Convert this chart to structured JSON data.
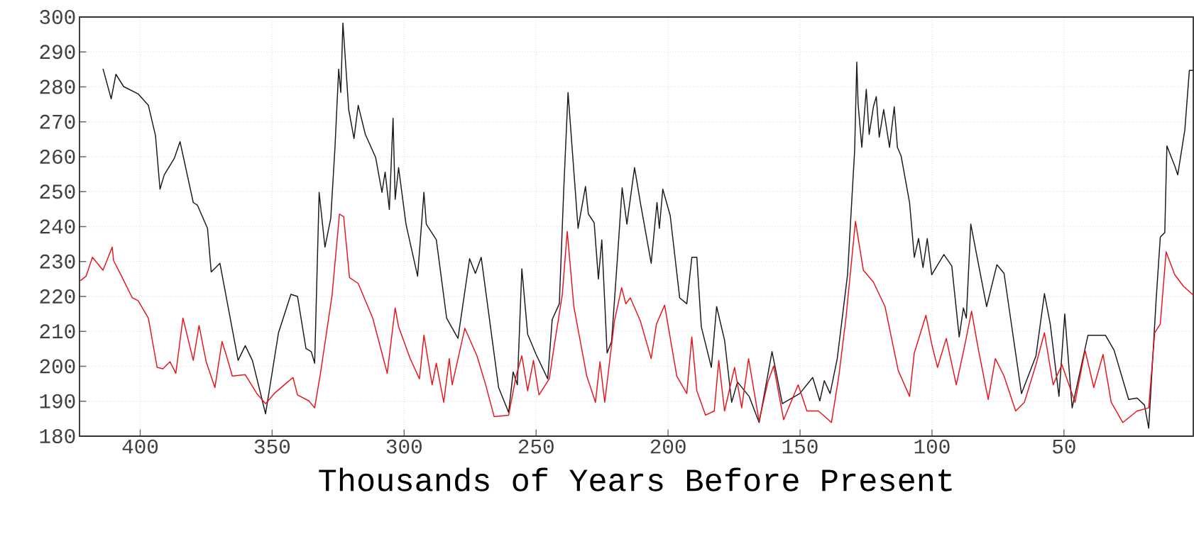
{
  "chart_data": {
    "type": "line",
    "xlabel": "Thousands of Years Before Present",
    "xlim": [
      423,
      1
    ],
    "ylim": [
      180,
      300
    ],
    "xticks": [
      400,
      350,
      300,
      250,
      200,
      150,
      100,
      50
    ],
    "yticks": [
      180,
      190,
      200,
      210,
      220,
      230,
      240,
      250,
      260,
      270,
      280,
      290,
      300
    ],
    "grid": true,
    "line_style": "solid",
    "series": [
      {
        "color": "#1a1a1a",
        "x": [
          414.1,
          411.0,
          409.2,
          406.3,
          400.8,
          396.9,
          394.2,
          392.5,
          390.9,
          387.1,
          384.9,
          379.9,
          378.3,
          374.5,
          373.1,
          369.8,
          362.9,
          360.2,
          357.5,
          352.5,
          347.6,
          342.9,
          340.4,
          337.2,
          335.2,
          333.9,
          332.2,
          330.0,
          327.8,
          326.2,
          324.8,
          324.0,
          323.2,
          321.0,
          319.0,
          317.4,
          314.7,
          310.8,
          308.4,
          307.2,
          305.6,
          304.2,
          303.4,
          302.1,
          299.3,
          294.9,
          292.5,
          291.6,
          287.8,
          283.9,
          279.6,
          275.2,
          273.0,
          270.8,
          264.2,
          260.4,
          258.7,
          257.1,
          255.4,
          253.2,
          250.0,
          245.6,
          243.9,
          241.2,
          239.5,
          237.9,
          234.1,
          231.3,
          230.2,
          228.0,
          226.4,
          225.1,
          223.1,
          221.4,
          219.2,
          217.4,
          215.6,
          212.7,
          210.5,
          206.4,
          204.2,
          203.3,
          202.0,
          199.2,
          195.6,
          192.9,
          191.0,
          189.1,
          187.4,
          183.6,
          181.6,
          178.6,
          175.9,
          173.7,
          169.3,
          165.5,
          160.6,
          156.7,
          150.1,
          145.2,
          142.5,
          140.8,
          138.6,
          135.9,
          132.0,
          129.3,
          128.5,
          128.0,
          126.6,
          124.9,
          123.8,
          122.2,
          121.1,
          120.0,
          118.3,
          116.1,
          114.3,
          113.1,
          111.7,
          108.5,
          106.7,
          105.1,
          103.4,
          101.8,
          100.1,
          95.5,
          92.5,
          89.7,
          88.1,
          87.0,
          85.3,
          79.3,
          75.4,
          72.7,
          66.1,
          60.6,
          57.4,
          55.2,
          51.9,
          49.7,
          46.9,
          40.9,
          34.3,
          31.0,
          25.5,
          22.3,
          19.5,
          17.9,
          15.1,
          13.5,
          11.8,
          11.0,
          8.0,
          6.9,
          4.2,
          2.5,
          1.0
        ],
        "values": [
          285.2,
          276.6,
          283.6,
          280.1,
          278.0,
          274.7,
          266.0,
          250.7,
          254.8,
          259.5,
          264.3,
          246.9,
          246.1,
          239.5,
          227.0,
          229.5,
          201.7,
          205.9,
          201.7,
          186.4,
          209.6,
          220.6,
          220.0,
          205.1,
          204.2,
          200.9,
          249.8,
          234.1,
          242.4,
          262.7,
          285.1,
          278.4,
          298.3,
          273.5,
          265.2,
          274.7,
          266.4,
          259.8,
          249.8,
          255.6,
          244.9,
          271.0,
          247.8,
          256.9,
          240.7,
          225.8,
          249.8,
          240.7,
          236.2,
          213.8,
          208.0,
          230.8,
          226.6,
          231.2,
          193.9,
          186.8,
          198.4,
          194.7,
          227.9,
          209.2,
          203.4,
          196.4,
          213.4,
          217.9,
          251.1,
          278.4,
          239.5,
          251.5,
          243.6,
          241.1,
          225.0,
          236.2,
          203.8,
          207.1,
          230.8,
          251.1,
          240.7,
          256.9,
          246.9,
          229.5,
          246.9,
          239.5,
          250.7,
          243.2,
          219.6,
          217.9,
          231.2,
          231.2,
          211.3,
          199.7,
          217.1,
          207.5,
          189.7,
          195.5,
          191.4,
          183.9,
          204.2,
          189.3,
          192.2,
          196.8,
          190.1,
          195.9,
          192.2,
          202.2,
          226.2,
          261.9,
          287.1,
          275.1,
          262.7,
          279.3,
          266.4,
          274.3,
          277.2,
          265.6,
          273.5,
          262.7,
          274.3,
          262.7,
          260.2,
          246.9,
          231.2,
          236.6,
          228.3,
          236.6,
          226.2,
          232.0,
          228.7,
          208.4,
          216.7,
          213.8,
          240.7,
          217.1,
          229.1,
          226.6,
          192.2,
          203.0,
          220.8,
          212.1,
          191.4,
          215.0,
          188.1,
          208.9,
          208.9,
          204.6,
          190.5,
          190.9,
          188.9,
          182.3,
          218.8,
          237.0,
          238.3,
          263.1,
          257.3,
          254.8,
          267.7,
          284.7,
          284.7
        ]
      },
      {
        "color": "#e8141b",
        "x": [
          422.7,
          420.5,
          418.1,
          414.1,
          410.6,
          410.1,
          406.8,
          403.0,
          400.8,
          396.9,
          393.6,
          391.4,
          388.7,
          386.5,
          383.8,
          379.9,
          377.7,
          375.0,
          371.7,
          369.0,
          367.3,
          365.1,
          360.2,
          355.8,
          352.5,
          349.2,
          344.8,
          342.1,
          340.4,
          336.1,
          333.9,
          331.7,
          327.3,
          324.5,
          322.9,
          320.7,
          317.4,
          311.9,
          306.4,
          303.4,
          302.1,
          297.7,
          294.2,
          292.5,
          289.4,
          287.8,
          285.0,
          282.9,
          281.8,
          277.0,
          272.4,
          269.1,
          265.9,
          260.4,
          257.6,
          255.4,
          253.2,
          251.0,
          248.9,
          245.0,
          243.4,
          240.1,
          238.2,
          235.7,
          230.8,
          227.5,
          225.8,
          224.0,
          220.3,
          217.6,
          216.0,
          214.3,
          210.5,
          206.4,
          204.4,
          201.3,
          196.7,
          192.9,
          191.0,
          189.1,
          185.8,
          182.5,
          180.8,
          178.6,
          174.8,
          172.1,
          169.5,
          165.5,
          162.2,
          160.0,
          156.2,
          150.7,
          147.4,
          143.0,
          138.1,
          135.3,
          132.6,
          129.0,
          126.0,
          122.2,
          117.8,
          112.8,
          108.5,
          106.7,
          102.3,
          100.1,
          97.9,
          94.6,
          90.8,
          87.5,
          85.0,
          82.6,
          78.7,
          76.0,
          72.7,
          68.3,
          65.0,
          60.6,
          57.4,
          54.1,
          50.8,
          45.8,
          42.0,
          38.7,
          35.2,
          32.1,
          27.7,
          22.3,
          17.9,
          15.6,
          13.5,
          11.3,
          8.0,
          4.7,
          1.0
        ],
        "values": [
          224.5,
          225.8,
          231.2,
          227.5,
          234.1,
          230.3,
          225.4,
          219.6,
          218.8,
          213.8,
          199.7,
          199.3,
          201.3,
          198.0,
          213.8,
          201.7,
          211.7,
          201.3,
          193.9,
          207.1,
          203.0,
          197.2,
          197.6,
          192.2,
          189.3,
          192.2,
          195.1,
          196.8,
          191.8,
          190.1,
          188.1,
          198.0,
          220.4,
          243.6,
          242.8,
          225.4,
          223.7,
          213.8,
          198.0,
          216.7,
          211.3,
          202.2,
          196.4,
          208.9,
          194.7,
          200.9,
          189.7,
          202.2,
          194.7,
          210.9,
          203.0,
          194.7,
          185.6,
          186.0,
          197.2,
          203.0,
          193.0,
          201.7,
          191.8,
          196.4,
          204.6,
          220.4,
          238.6,
          217.1,
          197.2,
          189.7,
          201.3,
          189.7,
          213.0,
          222.5,
          217.9,
          219.6,
          213.0,
          202.2,
          212.1,
          217.5,
          197.2,
          192.2,
          208.4,
          193.0,
          186.0,
          187.2,
          201.7,
          187.2,
          199.7,
          188.1,
          202.2,
          184.3,
          195.5,
          200.1,
          184.7,
          194.7,
          187.2,
          187.2,
          183.9,
          197.2,
          213.8,
          241.5,
          227.5,
          224.1,
          217.1,
          198.8,
          191.4,
          203.8,
          214.6,
          206.3,
          199.7,
          208.0,
          194.7,
          206.3,
          215.8,
          205.5,
          190.5,
          202.2,
          197.2,
          187.2,
          189.7,
          200.5,
          209.6,
          194.7,
          200.5,
          189.7,
          204.6,
          193.9,
          203.4,
          189.7,
          183.9,
          187.2,
          188.1,
          209.6,
          212.1,
          232.8,
          226.2,
          222.9,
          220.4
        ]
      }
    ]
  }
}
